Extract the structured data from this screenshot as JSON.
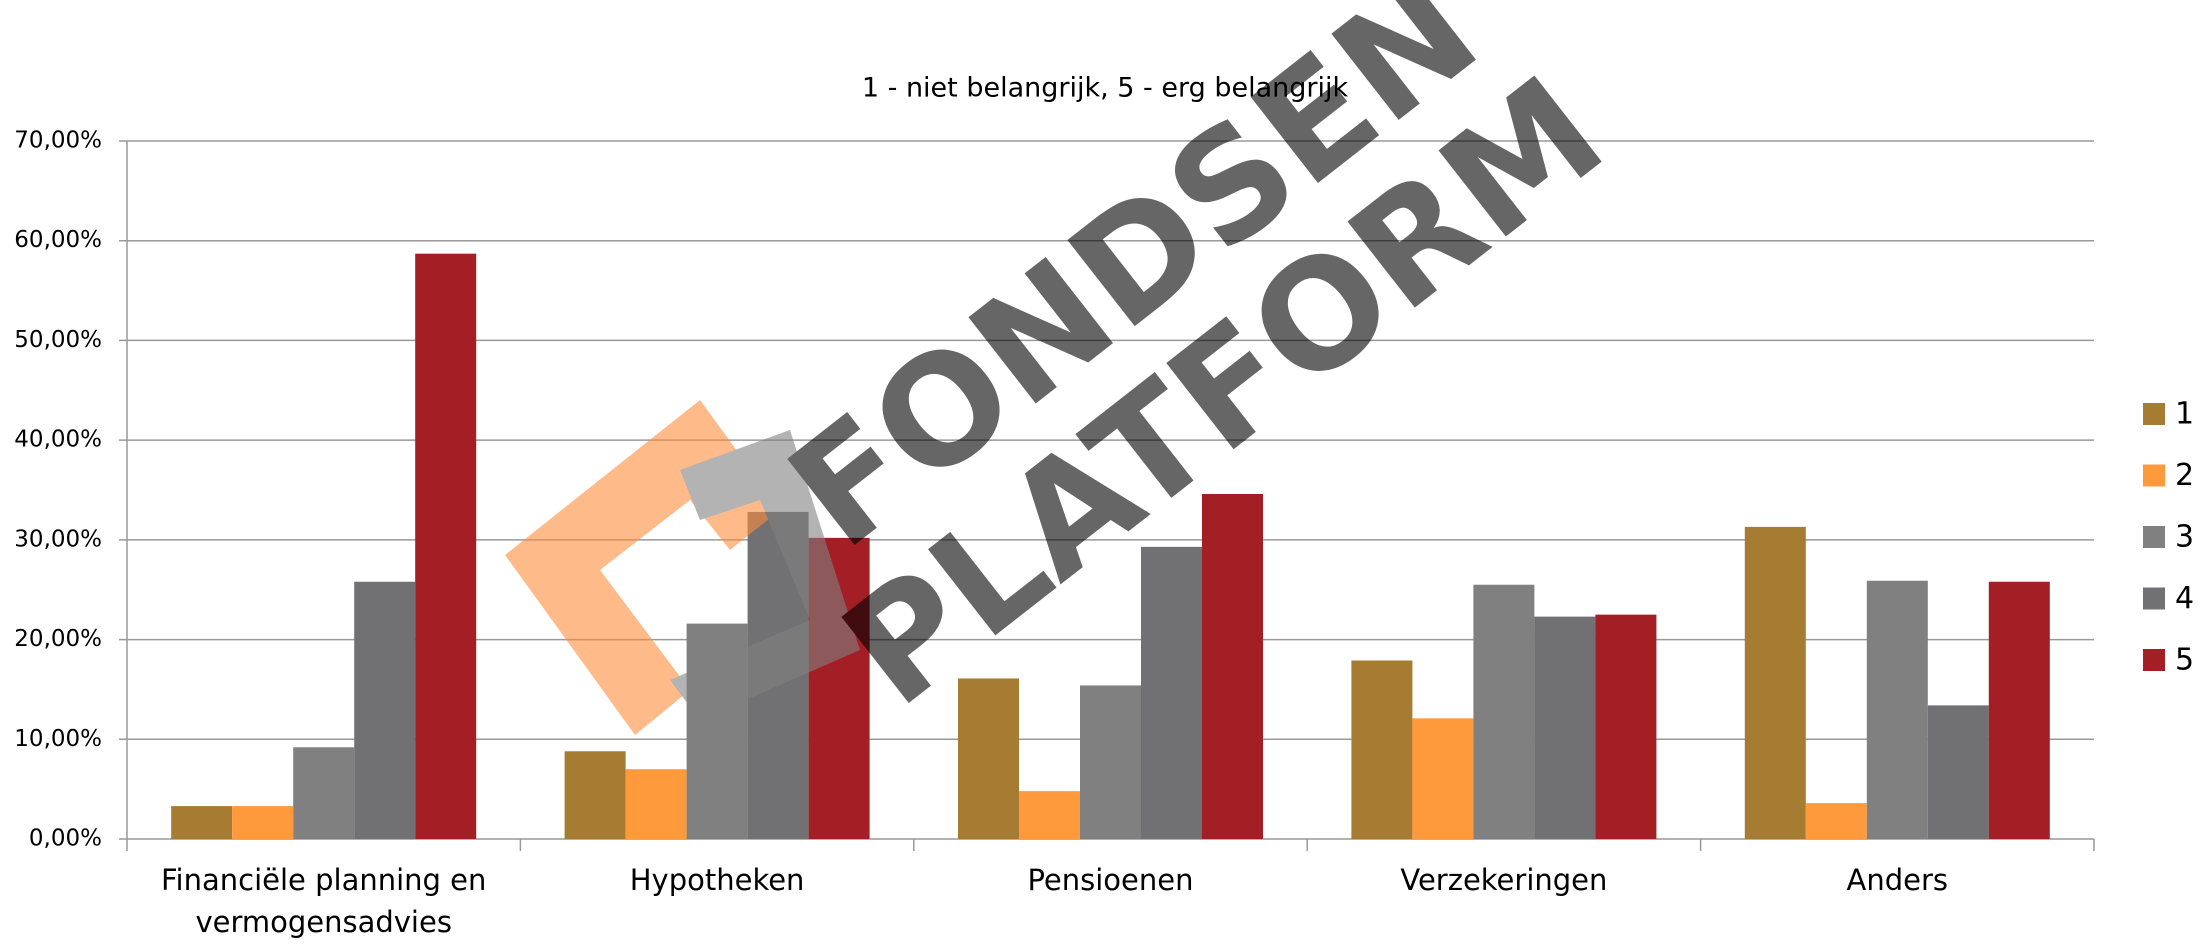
{
  "chart_data": {
    "type": "bar",
    "title": "1 - niet belangrijk, 5 - erg belangrijk",
    "watermark": [
      "FONDSEN",
      "PLATFORM"
    ],
    "categories": [
      "Financiële planning en vermogensadvies",
      "Hypotheken",
      "Pensioenen",
      "Verzekeringen",
      "Anders"
    ],
    "series": [
      {
        "name": "1",
        "color": "#a57c32",
        "values": [
          3.3,
          8.8,
          16.1,
          17.9,
          31.3
        ]
      },
      {
        "name": "2",
        "color": "#ff9a3c",
        "values": [
          3.3,
          7.0,
          4.8,
          12.1,
          3.6
        ]
      },
      {
        "name": "3",
        "color": "#808080",
        "values": [
          9.2,
          21.6,
          15.4,
          25.5,
          25.9
        ]
      },
      {
        "name": "4",
        "color": "#717174",
        "values": [
          25.8,
          32.8,
          29.3,
          22.3,
          13.4
        ]
      },
      {
        "name": "5",
        "color": "#a31e25",
        "values": [
          58.7,
          30.2,
          34.6,
          22.5,
          25.8
        ]
      }
    ],
    "ylim": [
      0,
      70
    ],
    "yticks": [
      {
        "value": 0,
        "label": "0,00%"
      },
      {
        "value": 10,
        "label": "10,00%"
      },
      {
        "value": 20,
        "label": "20,00%"
      },
      {
        "value": 30,
        "label": "30,00%"
      },
      {
        "value": 40,
        "label": "40,00%"
      },
      {
        "value": 50,
        "label": "50,00%"
      },
      {
        "value": 60,
        "label": "60,00%"
      },
      {
        "value": 70,
        "label": "70,00%"
      }
    ],
    "grid": true,
    "legend": "right"
  }
}
